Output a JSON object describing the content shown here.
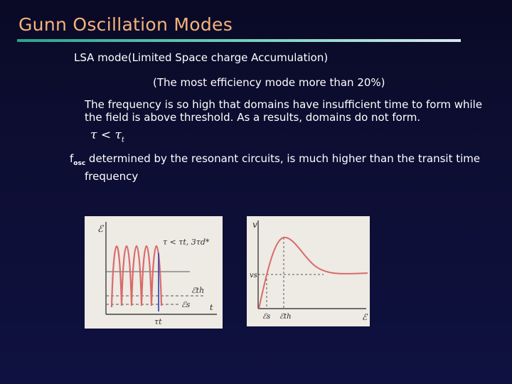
{
  "title": "Gunn Oscillation Modes",
  "mode_line": "LSA mode(Limited Space charge Accumulation)",
  "efficiency_line": "(The most efficiency mode more than 20%)",
  "paragraph_line1": "The frequency is so high that domains have insufficient time to form while",
  "paragraph_line2": "the field is above threshold. As a results, domains do not form.",
  "condition": {
    "tau": "τ",
    "op": "<",
    "tau_t": "τ",
    "sub_t": "t"
  },
  "fosc": {
    "f": "f",
    "sub": "osc",
    "line1": " determined by the resonant circuits, is much higher than the transit time",
    "line2": "frequency"
  },
  "figure_left": {
    "y_axis": "ℰ",
    "x_axis": "t",
    "annotation": "τ < τt, 3τd*",
    "label_th": "ℰth",
    "label_s": "ℰs",
    "label_tt": "τt"
  },
  "figure_right": {
    "y_axis": "v",
    "x_axis": "ℰ",
    "label_vs": "vs",
    "tick_es": "ℰs",
    "tick_eth": "ℰth"
  },
  "colors": {
    "title": "#f6b27c",
    "rule": "#2aa38f",
    "curve": "#d96a6a",
    "marker": "#2a3fb0"
  }
}
